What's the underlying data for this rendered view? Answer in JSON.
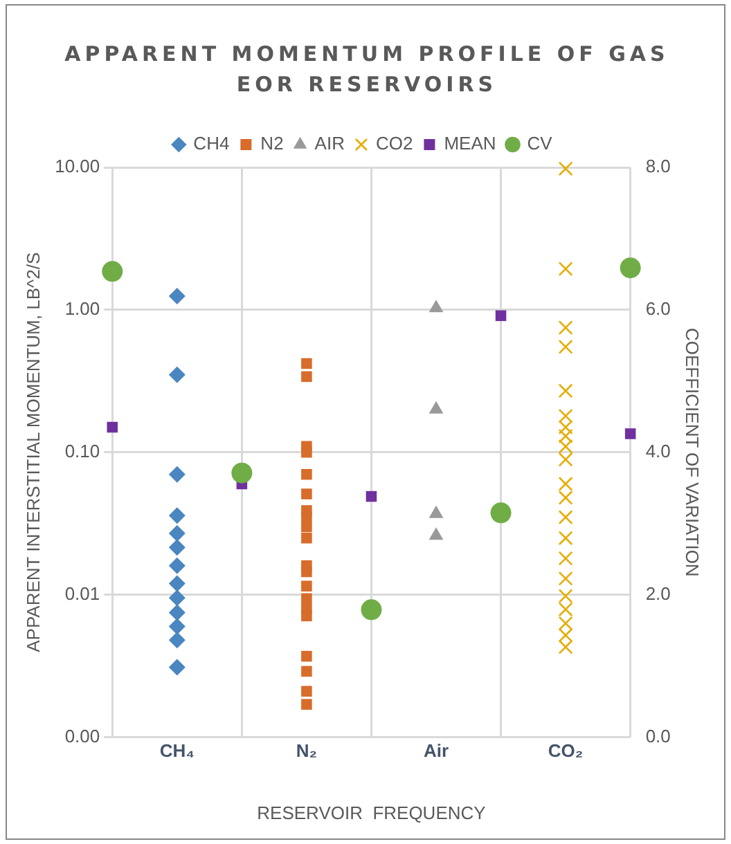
{
  "chart_data": {
    "type": "scatter",
    "title": "APPARENT MOMENTUM PROFILE OF GAS EOR RESERVOIRS",
    "xlabel": "RESERVOIR  FREQUENCY",
    "ylabel": "APPARENT INTERSTITIAL MOMENTUM, LB^2/S",
    "y2label": "COEFFICIENT OF VARIATION",
    "log": "y",
    "grid": true,
    "legend": "top",
    "categories": [
      null,
      "CH₄",
      null,
      "N₂",
      null,
      "Air",
      null,
      "CO₂",
      null
    ],
    "ylim": [
      0.001,
      10
    ],
    "yticks": [
      {
        "value": 0.001,
        "label": "0.00"
      },
      0.01,
      {
        "value": 0.1,
        "label": "0.10"
      },
      {
        "value": 1,
        "label": "1.00"
      },
      {
        "value": 10,
        "label": "10.00"
      }
    ],
    "y2lim": [
      0,
      8
    ],
    "y2ticks": [
      {
        "value": 0,
        "label": "0.0"
      },
      {
        "value": 2,
        "label": "2.0"
      },
      {
        "value": 4,
        "label": "4.0"
      },
      {
        "value": 6,
        "label": "6.0"
      },
      {
        "value": 8,
        "label": "8.0"
      }
    ],
    "series": [
      {
        "name": "CH4",
        "color": "#4a86c0",
        "marker": "diamond",
        "x": [
          "CH₄",
          "CH₄",
          "CH₄",
          "CH₄",
          "CH₄",
          "CH₄",
          "CH₄",
          "CH₄",
          "CH₄",
          "CH₄",
          "CH₄",
          "CH₄",
          "CH₄"
        ],
        "values": [
          1.25,
          0.35,
          0.07,
          0.036,
          0.027,
          0.0215,
          0.016,
          0.012,
          0.0095,
          0.0075,
          0.006,
          0.0048,
          0.0031
        ]
      },
      {
        "name": "N2",
        "color": "#d86c2a",
        "marker": "square",
        "x": [
          "N₂",
          "N₂",
          "N₂",
          "N₂",
          "N₂",
          "N₂",
          "N₂",
          "N₂",
          "N₂",
          "N₂",
          "N₂",
          "N₂",
          "N₂",
          "N₂",
          "N₂",
          "N₂",
          "N₂",
          "N₂",
          "N₂",
          "N₂"
        ],
        "values": [
          0.42,
          0.34,
          0.11,
          0.1,
          0.07,
          0.051,
          0.039,
          0.035,
          0.03,
          0.025,
          0.016,
          0.0145,
          0.0115,
          0.0094,
          0.008,
          0.0071,
          0.0037,
          0.0029,
          0.0021,
          0.0017
        ]
      },
      {
        "name": "AIR",
        "color": "#999999",
        "marker": "triangle",
        "x": [
          "Air",
          "Air",
          "Air",
          "Air"
        ],
        "values": [
          1.03,
          0.2,
          0.037,
          0.026
        ]
      },
      {
        "name": "CO2",
        "color": "#e6ac00",
        "marker": "cross",
        "x": [
          "CO₂",
          "CO₂",
          "CO₂",
          "CO₂",
          "CO₂",
          "CO₂",
          "CO₂",
          "CO₂",
          "CO₂",
          "CO₂",
          "CO₂",
          "CO₂",
          "CO₂",
          "CO₂",
          "CO₂",
          "CO₂",
          "CO₂",
          "CO₂",
          "CO₂",
          "CO₂",
          "CO₂"
        ],
        "values": [
          9.8,
          1.94,
          0.75,
          0.55,
          0.27,
          0.18,
          0.15,
          0.13,
          0.11,
          0.089,
          0.06,
          0.048,
          0.035,
          0.025,
          0.018,
          0.013,
          0.0098,
          0.0079,
          0.0063,
          0.0052,
          0.0043
        ]
      },
      {
        "name": "MEAN",
        "color": "#7030a0",
        "marker": "square",
        "values": [
          0.15,
          null,
          0.06,
          null,
          0.049,
          null,
          0.91,
          null,
          0.135
        ]
      },
      {
        "name": "CV",
        "color": "#70ad47",
        "marker": "circle",
        "axis": "y2",
        "values": [
          6.54,
          null,
          3.71,
          null,
          1.79,
          null,
          3.15,
          null,
          6.59
        ]
      }
    ]
  }
}
